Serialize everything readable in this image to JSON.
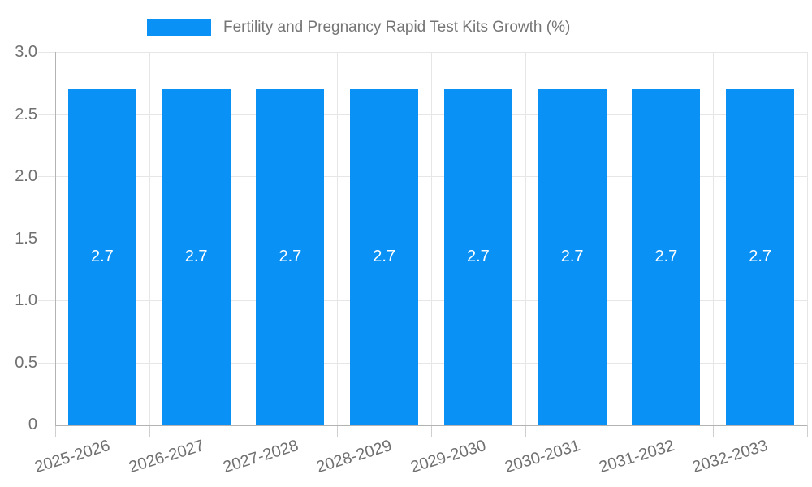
{
  "chart_data": {
    "type": "bar",
    "title": "Fertility and Pregnancy Rapid Test Kits Growth (%)",
    "categories": [
      "2025-2026",
      "2026-2027",
      "2027-2028",
      "2028-2029",
      "2029-2030",
      "2030-2031",
      "2031-2032",
      "2032-2033"
    ],
    "values": [
      2.7,
      2.7,
      2.7,
      2.7,
      2.7,
      2.7,
      2.7,
      2.7
    ],
    "bar_labels": [
      "2.7",
      "2.7",
      "2.7",
      "2.7",
      "2.7",
      "2.7",
      "2.7",
      "2.7"
    ],
    "xlabel": "",
    "ylabel": "",
    "ylim": [
      0,
      3.0
    ],
    "yticks": [
      {
        "label": "3.0",
        "value": 3.0
      },
      {
        "label": "2.5",
        "value": 2.5
      },
      {
        "label": "2.0",
        "value": 2.0
      },
      {
        "label": "1.5",
        "value": 1.5
      },
      {
        "label": "1.0",
        "value": 1.0
      },
      {
        "label": "0.5",
        "value": 0.5
      },
      {
        "label": "0",
        "value": 0.0
      }
    ],
    "grid": true,
    "legend_position": "top-center",
    "x_label_rotation_deg": -17,
    "colors": {
      "bar": "#0a91f5",
      "bar_label_text": "#ffffff",
      "legend_text": "#757575",
      "axis_label_text": "#707070",
      "gridline": "#e6e6e6",
      "axis_line": "#b3b3b3",
      "tick": "#cfcfcf",
      "background": "#ffffff"
    }
  }
}
